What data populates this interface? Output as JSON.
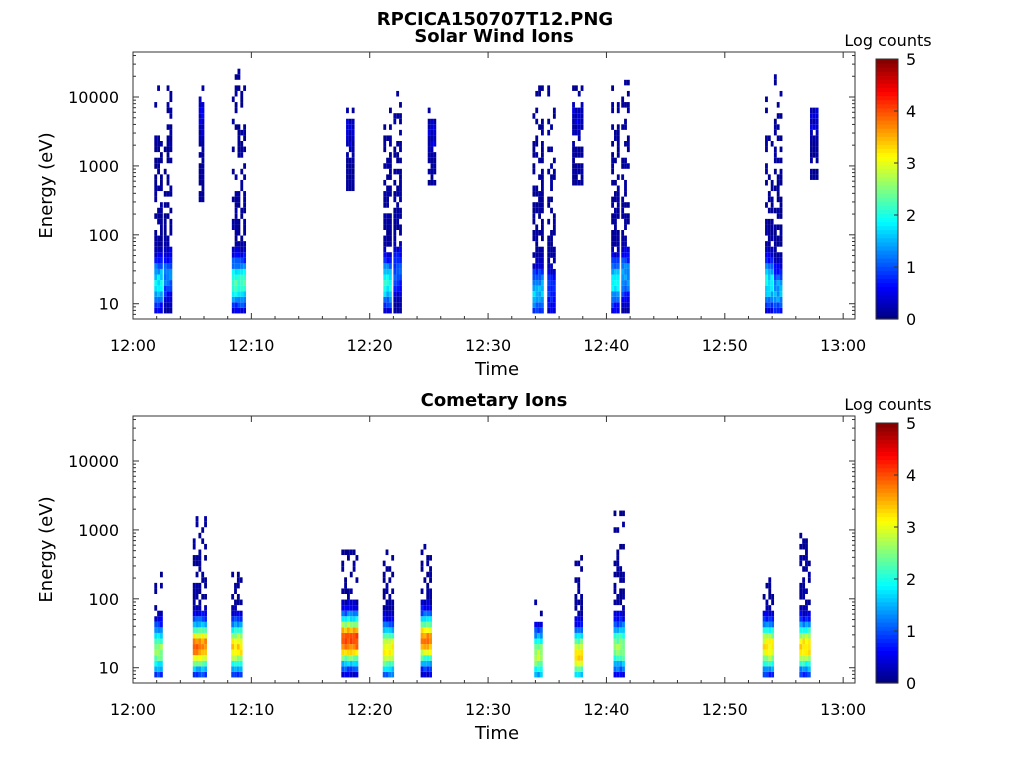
{
  "figure_title": "RPCICA150707T12.PNG",
  "chart_data": [
    {
      "type": "heatmap",
      "title": "Solar Wind Ions",
      "xlabel": "Time",
      "ylabel": "Energy (eV)",
      "x_ticks": [
        "12:00",
        "12:10",
        "12:20",
        "12:30",
        "12:40",
        "12:50",
        "13:00"
      ],
      "y_ticks": [
        "10",
        "100",
        "1000",
        "10000"
      ],
      "y_scale": "log",
      "ylim": [
        6,
        45000
      ],
      "xlim": [
        "12:00",
        "13:01"
      ],
      "colorbar_label": "Log counts",
      "colorbar_ticks": [
        "0",
        "1",
        "2",
        "3",
        "4",
        "5"
      ],
      "colorbar_range": [
        0,
        5
      ],
      "colormap": "jet",
      "bursts": [
        {
          "t": 2.1,
          "width": 0.6,
          "e_low": 7,
          "e_high": 14000,
          "peak_level": 1.8,
          "peak_e": 20
        },
        {
          "t": 2.9,
          "width": 0.6,
          "e_low": 7,
          "e_high": 14000,
          "peak_level": 1.2,
          "peak_e": 25
        },
        {
          "t": 5.8,
          "width": 0.5,
          "e_low": 300,
          "e_high": 18000,
          "peak_level": 0.5,
          "peak_e": 5000
        },
        {
          "t": 8.9,
          "width": 1.1,
          "e_low": 7,
          "e_high": 25000,
          "peak_level": 2.2,
          "peak_e": 20
        },
        {
          "t": 18.3,
          "width": 0.6,
          "e_low": 400,
          "e_high": 9000,
          "peak_level": 0.4,
          "peak_e": 3000
        },
        {
          "t": 21.5,
          "width": 0.7,
          "e_low": 7,
          "e_high": 9000,
          "peak_level": 2.0,
          "peak_e": 20
        },
        {
          "t": 22.4,
          "width": 0.8,
          "e_low": 7,
          "e_high": 13000,
          "peak_level": 1.0,
          "peak_e": 30
        },
        {
          "t": 25.3,
          "width": 0.8,
          "e_low": 500,
          "e_high": 9000,
          "peak_level": 0.4,
          "peak_e": 3000
        },
        {
          "t": 34.2,
          "width": 0.9,
          "e_low": 7,
          "e_high": 14000,
          "peak_level": 1.6,
          "peak_e": 15
        },
        {
          "t": 35.4,
          "width": 0.8,
          "e_low": 7,
          "e_high": 14000,
          "peak_level": 0.9,
          "peak_e": 15
        },
        {
          "t": 37.6,
          "width": 1.0,
          "e_low": 500,
          "e_high": 14000,
          "peak_level": 0.4,
          "peak_e": 5000
        },
        {
          "t": 40.7,
          "width": 0.6,
          "e_low": 7,
          "e_high": 15000,
          "peak_level": 1.8,
          "peak_e": 20
        },
        {
          "t": 41.6,
          "width": 0.7,
          "e_low": 7,
          "e_high": 30000,
          "peak_level": 1.4,
          "peak_e": 25
        },
        {
          "t": 53.7,
          "width": 0.6,
          "e_low": 7,
          "e_high": 14000,
          "peak_level": 1.9,
          "peak_e": 20
        },
        {
          "t": 54.5,
          "width": 0.7,
          "e_low": 7,
          "e_high": 20000,
          "peak_level": 1.5,
          "peak_e": 15
        },
        {
          "t": 57.6,
          "width": 0.8,
          "e_low": 600,
          "e_high": 9000,
          "peak_level": 0.4,
          "peak_e": 5000
        }
      ]
    },
    {
      "type": "heatmap",
      "title": "Cometary Ions",
      "xlabel": "Time",
      "ylabel": "Energy (eV)",
      "x_ticks": [
        "12:00",
        "12:10",
        "12:20",
        "12:30",
        "12:40",
        "12:50",
        "13:00"
      ],
      "y_ticks": [
        "10",
        "100",
        "1000",
        "10000"
      ],
      "y_scale": "log",
      "ylim": [
        6,
        45000
      ],
      "xlim": [
        "12:00",
        "13:01"
      ],
      "colorbar_label": "Log counts",
      "colorbar_ticks": [
        "0",
        "1",
        "2",
        "3",
        "4",
        "5"
      ],
      "colorbar_range": [
        0,
        5
      ],
      "colormap": "jet",
      "bursts": [
        {
          "t": 2.2,
          "width": 0.8,
          "e_low": 7,
          "e_high": 300,
          "peak_level": 2.6,
          "peak_e": 18
        },
        {
          "t": 5.6,
          "width": 1.1,
          "e_low": 7,
          "e_high": 1500,
          "peak_level": 3.8,
          "peak_e": 20
        },
        {
          "t": 8.8,
          "width": 1.0,
          "e_low": 7,
          "e_high": 250,
          "peak_level": 3.3,
          "peak_e": 20
        },
        {
          "t": 18.3,
          "width": 1.4,
          "e_low": 7,
          "e_high": 600,
          "peak_level": 4.1,
          "peak_e": 25
        },
        {
          "t": 21.6,
          "width": 1.0,
          "e_low": 7,
          "e_high": 500,
          "peak_level": 3.2,
          "peak_e": 18
        },
        {
          "t": 24.8,
          "width": 1.0,
          "e_low": 7,
          "e_high": 800,
          "peak_level": 3.8,
          "peak_e": 25
        },
        {
          "t": 34.3,
          "width": 0.8,
          "e_low": 7,
          "e_high": 100,
          "peak_level": 2.8,
          "peak_e": 15
        },
        {
          "t": 37.7,
          "width": 0.8,
          "e_low": 7,
          "e_high": 700,
          "peak_level": 3.3,
          "peak_e": 15
        },
        {
          "t": 41.1,
          "width": 1.0,
          "e_low": 7,
          "e_high": 2000,
          "peak_level": 2.6,
          "peak_e": 20
        },
        {
          "t": 53.7,
          "width": 1.0,
          "e_low": 7,
          "e_high": 250,
          "peak_level": 3.2,
          "peak_e": 20
        },
        {
          "t": 56.8,
          "width": 1.0,
          "e_low": 7,
          "e_high": 900,
          "peak_level": 3.3,
          "peak_e": 20
        }
      ]
    }
  ]
}
